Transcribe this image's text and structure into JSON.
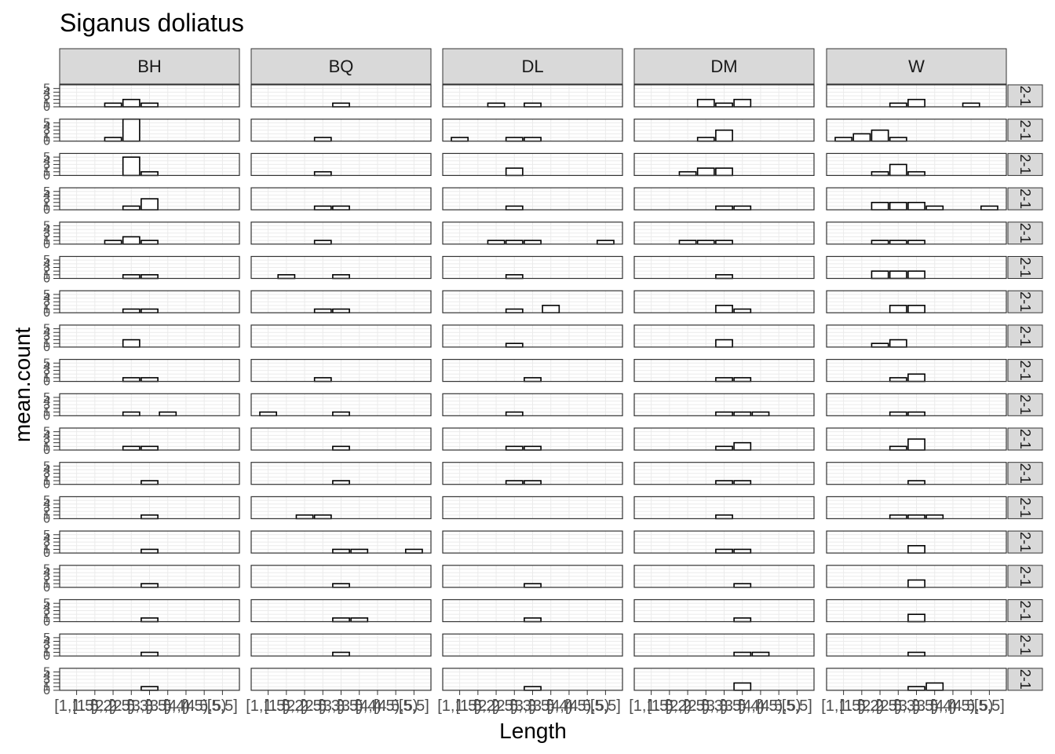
{
  "chart_data": {
    "type": "bar",
    "title": "Siganus doliatus",
    "xlabel": "Length",
    "ylabel": "mean.count",
    "columns": [
      "BH",
      "BQ",
      "DL",
      "DM",
      "W"
    ],
    "row_strip_label": "2-1",
    "categories": [
      "[1,1.5)",
      "[1.5,2)",
      "[2,2.5)",
      "[2.5,3)",
      "[3,3.5)",
      "[3.5,4)",
      "[4,4.5)",
      "[4.5,5)",
      "[5,5]"
    ],
    "x_tick_labels": [
      "[1,1.5)",
      "[1.5,2)",
      "[2,2.5)",
      "[2.5,3)",
      "[3,3.5)",
      "[3.5,4)",
      "[4,4.5)",
      "[4.5,5)",
      "[5,5]"
    ],
    "y_ticks": [
      0,
      1,
      2,
      3,
      4,
      5
    ],
    "ylim": [
      0,
      6
    ],
    "grid": true,
    "panels": [
      [
        [
          0,
          0,
          1,
          2,
          1,
          0,
          0,
          0,
          0
        ],
        [
          0,
          0,
          0,
          0,
          1,
          0,
          0,
          0,
          0
        ],
        [
          0,
          0,
          1,
          0,
          1,
          0,
          0,
          0,
          0
        ],
        [
          0,
          0,
          0,
          2,
          1,
          2,
          0,
          0,
          0
        ],
        [
          0,
          0,
          0,
          1,
          2,
          0,
          0,
          1,
          0
        ]
      ],
      [
        [
          0,
          0,
          1,
          6,
          0,
          0,
          0,
          0,
          0
        ],
        [
          0,
          0,
          0,
          1,
          0,
          0,
          0,
          0,
          0
        ],
        [
          1,
          0,
          0,
          1,
          1,
          0,
          0,
          0,
          0
        ],
        [
          0,
          0,
          0,
          1,
          3,
          0,
          0,
          0,
          0
        ],
        [
          1,
          2,
          3,
          1,
          0,
          0,
          0,
          0,
          0
        ]
      ],
      [
        [
          0,
          0,
          0,
          5,
          1,
          0,
          0,
          0,
          0
        ],
        [
          0,
          0,
          0,
          1,
          0,
          0,
          0,
          0,
          0
        ],
        [
          0,
          0,
          0,
          2,
          0,
          0,
          0,
          0,
          0
        ],
        [
          0,
          0,
          1,
          2,
          2,
          0,
          0,
          0,
          0
        ],
        [
          0,
          0,
          1,
          3,
          1,
          0,
          0,
          0,
          0
        ]
      ],
      [
        [
          0,
          0,
          0,
          1,
          3,
          0,
          0,
          0,
          0
        ],
        [
          0,
          0,
          0,
          1,
          1,
          0,
          0,
          0,
          0
        ],
        [
          0,
          0,
          0,
          1,
          0,
          0,
          0,
          0,
          0
        ],
        [
          0,
          0,
          0,
          0,
          1,
          1,
          0,
          0,
          0
        ],
        [
          0,
          0,
          2,
          2,
          2,
          1,
          0,
          0,
          1
        ]
      ],
      [
        [
          0,
          0,
          1,
          2,
          1,
          0,
          0,
          0,
          0
        ],
        [
          0,
          0,
          0,
          1,
          0,
          0,
          0,
          0,
          0
        ],
        [
          0,
          0,
          1,
          1,
          1,
          0,
          0,
          0,
          1
        ],
        [
          0,
          0,
          1,
          1,
          1,
          0,
          0,
          0,
          0
        ],
        [
          0,
          0,
          1,
          1,
          1,
          0,
          0,
          0,
          0
        ]
      ],
      [
        [
          0,
          0,
          0,
          1,
          1,
          0,
          0,
          0,
          0
        ],
        [
          0,
          1,
          0,
          0,
          1,
          0,
          0,
          0,
          0
        ],
        [
          0,
          0,
          0,
          1,
          0,
          0,
          0,
          0,
          0
        ],
        [
          0,
          0,
          0,
          0,
          1,
          0,
          0,
          0,
          0
        ],
        [
          0,
          0,
          2,
          2,
          2,
          0,
          0,
          0,
          0
        ]
      ],
      [
        [
          0,
          0,
          0,
          1,
          1,
          0,
          0,
          0,
          0
        ],
        [
          0,
          0,
          0,
          1,
          1,
          0,
          0,
          0,
          0
        ],
        [
          0,
          0,
          0,
          1,
          0,
          2,
          0,
          0,
          0
        ],
        [
          0,
          0,
          0,
          0,
          2,
          1,
          0,
          0,
          0
        ],
        [
          0,
          0,
          0,
          2,
          2,
          0,
          0,
          0,
          0
        ]
      ],
      [
        [
          0,
          0,
          0,
          2,
          0,
          0,
          0,
          0,
          0
        ],
        [
          0,
          0,
          0,
          0,
          0,
          0,
          0,
          0,
          0
        ],
        [
          0,
          0,
          0,
          1,
          0,
          0,
          0,
          0,
          0
        ],
        [
          0,
          0,
          0,
          0,
          2,
          0,
          0,
          0,
          0
        ],
        [
          0,
          0,
          1,
          2,
          0,
          0,
          0,
          0,
          0
        ]
      ],
      [
        [
          0,
          0,
          0,
          1,
          1,
          0,
          0,
          0,
          0
        ],
        [
          0,
          0,
          0,
          1,
          0,
          0,
          0,
          0,
          0
        ],
        [
          0,
          0,
          0,
          0,
          1,
          0,
          0,
          0,
          0
        ],
        [
          0,
          0,
          0,
          0,
          1,
          1,
          0,
          0,
          0
        ],
        [
          0,
          0,
          0,
          1,
          2,
          0,
          0,
          0,
          0
        ]
      ],
      [
        [
          0,
          0,
          0,
          1,
          0,
          1,
          0,
          0,
          0
        ],
        [
          1,
          0,
          0,
          0,
          1,
          0,
          0,
          0,
          0
        ],
        [
          0,
          0,
          0,
          1,
          0,
          0,
          0,
          0,
          0
        ],
        [
          0,
          0,
          0,
          0,
          1,
          1,
          1,
          0,
          0
        ],
        [
          0,
          0,
          0,
          1,
          1,
          0,
          0,
          0,
          0
        ]
      ],
      [
        [
          0,
          0,
          0,
          1,
          1,
          0,
          0,
          0,
          0
        ],
        [
          0,
          0,
          0,
          0,
          1,
          0,
          0,
          0,
          0
        ],
        [
          0,
          0,
          0,
          1,
          1,
          0,
          0,
          0,
          0
        ],
        [
          0,
          0,
          0,
          0,
          1,
          2,
          0,
          0,
          0
        ],
        [
          0,
          0,
          0,
          1,
          3,
          0,
          0,
          0,
          0
        ]
      ],
      [
        [
          0,
          0,
          0,
          0,
          1,
          0,
          0,
          0,
          0
        ],
        [
          0,
          0,
          0,
          0,
          1,
          0,
          0,
          0,
          0
        ],
        [
          0,
          0,
          0,
          1,
          1,
          0,
          0,
          0,
          0
        ],
        [
          0,
          0,
          0,
          0,
          1,
          1,
          0,
          0,
          0
        ],
        [
          0,
          0,
          0,
          0,
          1,
          0,
          0,
          0,
          0
        ]
      ],
      [
        [
          0,
          0,
          0,
          0,
          1,
          0,
          0,
          0,
          0
        ],
        [
          0,
          0,
          1,
          1,
          0,
          0,
          0,
          0,
          0
        ],
        [
          0,
          0,
          0,
          0,
          0,
          0,
          0,
          0,
          0
        ],
        [
          0,
          0,
          0,
          0,
          1,
          0,
          0,
          0,
          0
        ],
        [
          0,
          0,
          0,
          1,
          1,
          1,
          0,
          0,
          0
        ]
      ],
      [
        [
          0,
          0,
          0,
          0,
          1,
          0,
          0,
          0,
          0
        ],
        [
          0,
          0,
          0,
          0,
          1,
          1,
          0,
          0,
          1
        ],
        [
          0,
          0,
          0,
          0,
          0,
          0,
          0,
          0,
          0
        ],
        [
          0,
          0,
          0,
          0,
          1,
          1,
          0,
          0,
          0
        ],
        [
          0,
          0,
          0,
          0,
          2,
          0,
          0,
          0,
          0
        ]
      ],
      [
        [
          0,
          0,
          0,
          0,
          1,
          0,
          0,
          0,
          0
        ],
        [
          0,
          0,
          0,
          0,
          1,
          0,
          0,
          0,
          0
        ],
        [
          0,
          0,
          0,
          0,
          1,
          0,
          0,
          0,
          0
        ],
        [
          0,
          0,
          0,
          0,
          0,
          1,
          0,
          0,
          0
        ],
        [
          0,
          0,
          0,
          0,
          2,
          0,
          0,
          0,
          0
        ]
      ],
      [
        [
          0,
          0,
          0,
          0,
          1,
          0,
          0,
          0,
          0
        ],
        [
          0,
          0,
          0,
          0,
          1,
          1,
          0,
          0,
          0
        ],
        [
          0,
          0,
          0,
          0,
          1,
          0,
          0,
          0,
          0
        ],
        [
          0,
          0,
          0,
          0,
          0,
          1,
          0,
          0,
          0
        ],
        [
          0,
          0,
          0,
          0,
          2,
          0,
          0,
          0,
          0
        ]
      ],
      [
        [
          0,
          0,
          0,
          0,
          1,
          0,
          0,
          0,
          0
        ],
        [
          0,
          0,
          0,
          0,
          1,
          0,
          0,
          0,
          0
        ],
        [
          0,
          0,
          0,
          0,
          0,
          0,
          0,
          0,
          0
        ],
        [
          0,
          0,
          0,
          0,
          0,
          1,
          1,
          0,
          0
        ],
        [
          0,
          0,
          0,
          0,
          1,
          0,
          0,
          0,
          0
        ]
      ],
      [
        [
          0,
          0,
          0,
          0,
          1,
          0,
          0,
          0,
          0
        ],
        [
          0,
          0,
          0,
          0,
          0,
          0,
          0,
          0,
          0
        ],
        [
          0,
          0,
          0,
          0,
          1,
          0,
          0,
          0,
          0
        ],
        [
          0,
          0,
          0,
          0,
          0,
          2,
          0,
          0,
          0
        ],
        [
          0,
          0,
          0,
          0,
          1,
          2,
          0,
          0,
          0
        ]
      ]
    ]
  }
}
